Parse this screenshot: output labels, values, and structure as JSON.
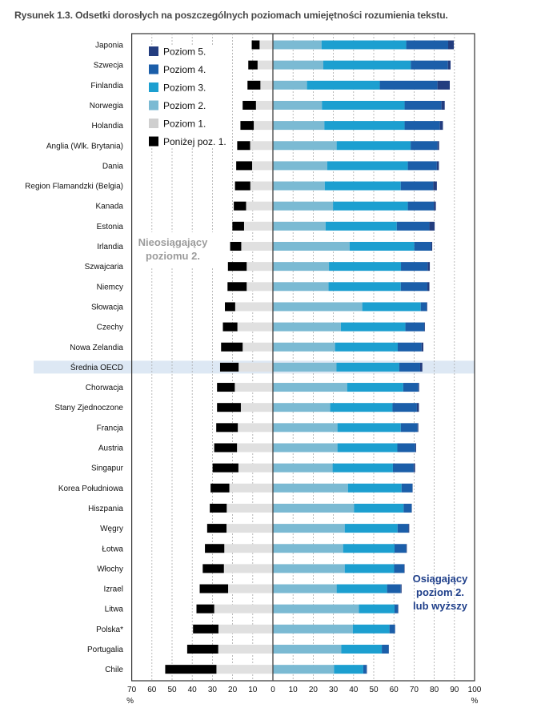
{
  "title": "Rysunek 1.3. Odsetki dorosłych na poszczególnych poziomach umiejętności rozumienia tekstu.",
  "chart_data": {
    "type": "bar",
    "orientation": "horizontal-stacked-diverging",
    "title": "Rysunek 1.3. Odsetki dorosłych na poszczególnych poziomach umiejętności rozumienia tekstu.",
    "xlabel_left": "%",
    "xlabel_right": "%",
    "xlim": [
      -70,
      100
    ],
    "xticks": [
      -70,
      -60,
      -50,
      -40,
      -30,
      -20,
      -10,
      0,
      10,
      20,
      30,
      40,
      50,
      60,
      70,
      80,
      90,
      100
    ],
    "xtick_labels": [
      "70",
      "60",
      "50",
      "40",
      "30",
      "20",
      "10",
      "0",
      "10",
      "20",
      "30",
      "40",
      "50",
      "60",
      "70",
      "80",
      "90",
      "100"
    ],
    "grid": true,
    "legend_position": "top-left",
    "highlighted_category": "Średnia OECD",
    "annotations": {
      "left": [
        "Nieosiągający",
        "poziomu 2."
      ],
      "right": [
        "Osiągający",
        "poziom 2.",
        "lub wyższy"
      ]
    },
    "series": [
      {
        "name": "Poziom 5.",
        "color": "#233d7f",
        "side": "right"
      },
      {
        "name": "Poziom 4.",
        "color": "#1b5ea9",
        "side": "right"
      },
      {
        "name": "Poziom 3.",
        "color": "#1c9fd0",
        "side": "right"
      },
      {
        "name": "Poziom 2.",
        "color": "#7bbad3",
        "side": "right"
      },
      {
        "name": "Poziom 1.",
        "color": "#e0e0e0",
        "side": "left"
      },
      {
        "name": "Poniżej poz. 1.",
        "color": "#000000",
        "side": "left"
      }
    ],
    "legend_swatch_colors": [
      "#233d7f",
      "#1b5ea9",
      "#1c9fd0",
      "#7bbad3",
      "#cfcfcf",
      "#000000"
    ],
    "categories": [
      "Japonia",
      "Szwecja",
      "Finlandia",
      "Norwegia",
      "Holandia",
      "Anglia (Wlk. Brytania)",
      "Dania",
      "Region Flamandzki (Belgia)",
      "Kanada",
      "Estonia",
      "Irlandia",
      "Szwajcaria",
      "Niemcy",
      "Słowacja",
      "Czechy",
      "Nowa Zelandia",
      "Średnia OECD",
      "Chorwacja",
      "Stany Zjednoczone",
      "Francja",
      "Austria",
      "Singapur",
      "Korea Południowa",
      "Hiszpania",
      "Węgry",
      "Łotwa",
      "Włochy",
      "Izrael",
      "Litwa",
      "Polska*",
      "Portugalia",
      "Chile"
    ],
    "values": {
      "Poniżej poz. 1.": [
        3.9,
        4.6,
        6.4,
        6.6,
        6.6,
        6.4,
        7.9,
        7.6,
        6.1,
        5.8,
        5.5,
        9.3,
        9.5,
        5.1,
        7.2,
        10.7,
        9.2,
        8.8,
        11.8,
        10.7,
        11.3,
        12.8,
        9.3,
        8.4,
        9.6,
        9.6,
        10.5,
        14.1,
        8.8,
        12.6,
        15.4,
        25.4
      ],
      "Poziom 1.": [
        6.6,
        7.6,
        6.2,
        8.4,
        9.5,
        11.3,
        10.3,
        11.2,
        13.3,
        14.3,
        15.7,
        13.0,
        13.0,
        18.7,
        17.6,
        15.0,
        17.0,
        18.9,
        15.9,
        17.4,
        17.8,
        17.1,
        21.6,
        22.9,
        23.0,
        24.1,
        24.3,
        22.2,
        29.1,
        27.0,
        27.1,
        28.0
      ],
      "Poziom 2.": [
        24.1,
        25.0,
        16.9,
        24.3,
        25.5,
        31.6,
        26.9,
        25.7,
        29.8,
        26.1,
        38.0,
        27.8,
        27.6,
        44.3,
        33.7,
        30.8,
        31.5,
        36.8,
        28.4,
        32.0,
        32.0,
        29.6,
        37.2,
        40.2,
        35.6,
        34.8,
        35.6,
        31.6,
        42.6,
        39.6,
        33.9,
        30.3
      ],
      "Poziom 3.": [
        42.0,
        43.4,
        36.1,
        41.0,
        39.8,
        36.7,
        40.0,
        37.7,
        37.1,
        35.3,
        32.1,
        35.7,
        35.8,
        29.0,
        32.0,
        31.1,
        31.1,
        27.8,
        30.9,
        31.4,
        29.7,
        29.9,
        26.6,
        24.6,
        26.2,
        25.5,
        24.5,
        25.0,
        17.7,
        18.2,
        20.1,
        14.5
      ],
      "Poziom 4.": [
        20.8,
        18.4,
        28.6,
        18.3,
        17.5,
        13.3,
        14.4,
        16.1,
        12.9,
        16.2,
        8.3,
        13.2,
        13.2,
        2.9,
        9.4,
        11.8,
        10.4,
        7.5,
        12.1,
        8.3,
        8.9,
        10.3,
        5.4,
        4.0,
        5.4,
        5.8,
        5.0,
        6.8,
        1.7,
        2.7,
        3.4,
        1.6
      ],
      "Poziom 5.": [
        2.8,
        1.3,
        6.1,
        1.6,
        1.5,
        0.8,
        1.0,
        1.8,
        1.0,
        2.6,
        0.6,
        1.1,
        1.0,
        0.3,
        0.3,
        0.9,
        1.1,
        0.4,
        1.0,
        0.4,
        0.4,
        0.7,
        0.1,
        0.1,
        0.4,
        0.3,
        0.2,
        0.4,
        0.2,
        0.1,
        0.1,
        0.2
      ]
    }
  }
}
